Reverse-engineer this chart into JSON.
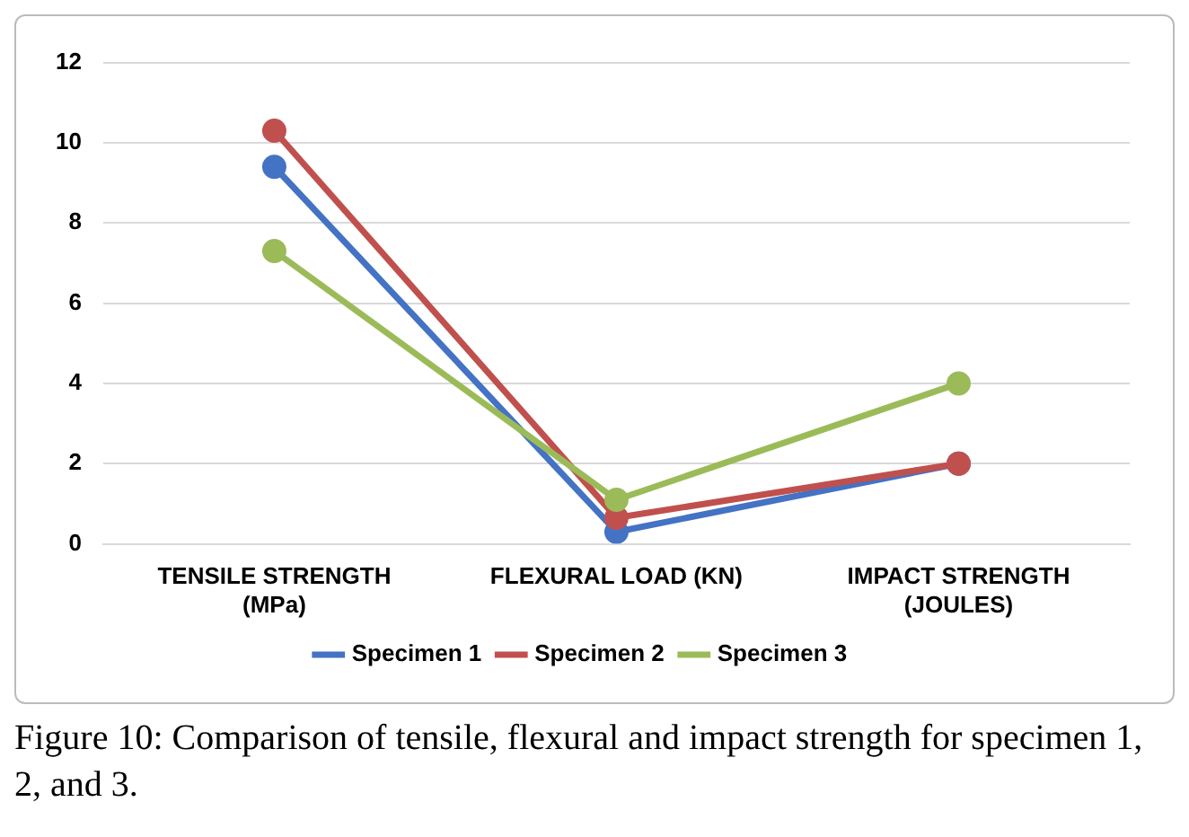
{
  "chart_data": {
    "type": "line",
    "categories": [
      "TENSILE STRENGTH (MPa)",
      "FLEXURAL LOAD (KN)",
      "IMPACT STRENGTH (JOULES)"
    ],
    "series": [
      {
        "name": "Specimen 1",
        "color": "#4472c4",
        "values": [
          9.4,
          0.3,
          2.0
        ]
      },
      {
        "name": "Specimen 2",
        "color": "#c0504d",
        "values": [
          10.3,
          0.65,
          2.0
        ]
      },
      {
        "name": "Specimen 3",
        "color": "#9bbb59",
        "values": [
          7.3,
          1.1,
          4.0
        ]
      }
    ],
    "ylim": [
      0,
      12
    ],
    "yticks": [
      0,
      2,
      4,
      6,
      8,
      10,
      12
    ],
    "grid": "y",
    "legend": "bottom",
    "marker": "circle",
    "line_style": "solid",
    "annotations": [
      "Figure 10: Comparison of tensile, flexural and impact strength for specimen 1, 2, and 3."
    ]
  }
}
